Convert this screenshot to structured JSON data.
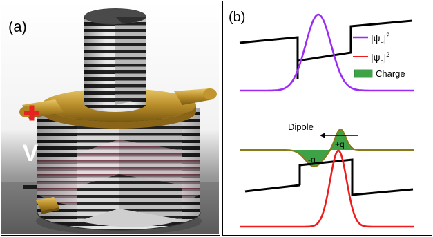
{
  "panel_a": {
    "label": "(a)",
    "plus_sign": "+",
    "voltage": "V",
    "minus_sign": "−",
    "colors": {
      "plus": "#e8231f",
      "gold": "#c9a03a",
      "stripe_dark": "#1e1e1e",
      "stripe_light": "#e6e6e6",
      "active_layer": "#e9b6c6"
    }
  },
  "panel_b": {
    "label": "(b)",
    "legend": {
      "electron_prefix": "|ψ",
      "electron_sub": "e",
      "electron_suffix": "|",
      "electron_sup": "2",
      "hole_prefix": "|ψ",
      "hole_sub": "h",
      "hole_suffix": "|",
      "hole_sup": "2",
      "charge": "Charge"
    },
    "annotations": {
      "dipole": "Dipole",
      "positive": "+q",
      "negative": "-q"
    },
    "colors": {
      "electron": "#9b2cf2",
      "hole": "#ee1c1c",
      "charge_fill": "#3ea346",
      "charge_line": "#8b7a1a",
      "band": "#000000"
    }
  }
}
